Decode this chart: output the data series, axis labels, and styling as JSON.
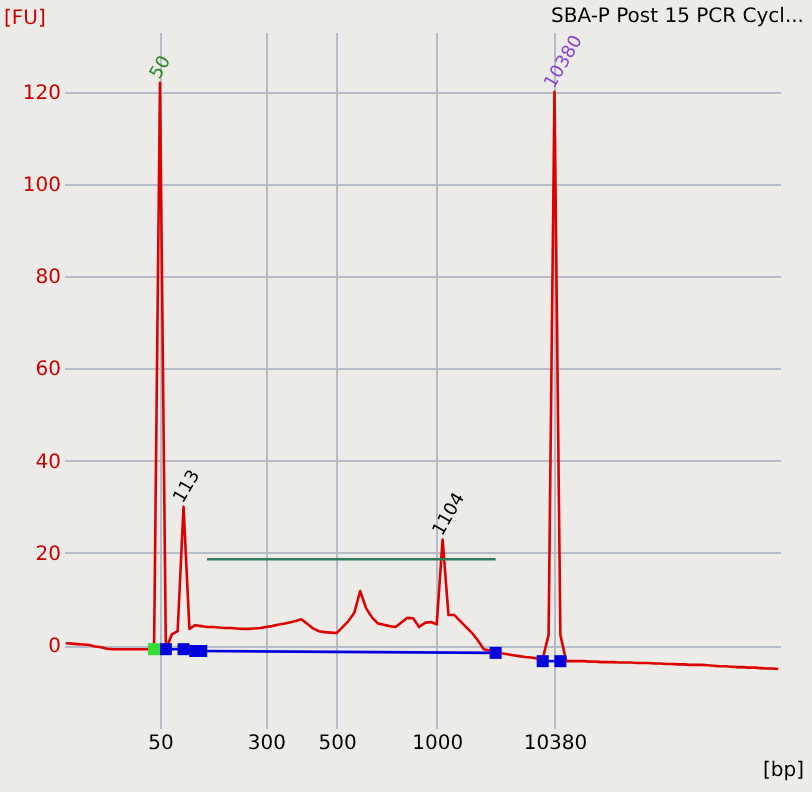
{
  "chart_data": {
    "type": "line",
    "title": "SBA-P Post 15 PCR Cycl...",
    "xlabel": "[bp]",
    "ylabel": "[FU]",
    "categories": [
      null,
      null,
      null,
      null,
      null,
      null,
      null,
      null,
      null,
      null,
      null,
      null,
      null,
      null,
      null,
      null,
      "50",
      null,
      null,
      null,
      null,
      null,
      null,
      null,
      null,
      null,
      null,
      null,
      null,
      null,
      null,
      null,
      null,
      null,
      "300",
      null,
      null,
      null,
      null,
      null,
      null,
      null,
      null,
      null,
      null,
      null,
      "500",
      null,
      null,
      null,
      null,
      null,
      null,
      null,
      null,
      null,
      null,
      null,
      null,
      null,
      null,
      null,
      null,
      "1000",
      null,
      null,
      null,
      null,
      null,
      null,
      null,
      null,
      null,
      null,
      null,
      null,
      null,
      null,
      null,
      null,
      null,
      null,
      null,
      "10380",
      null,
      null,
      null,
      null,
      null,
      null,
      null,
      null,
      null,
      null,
      null,
      null,
      null,
      null,
      null,
      null,
      null,
      null,
      null,
      null,
      null,
      null,
      null,
      null,
      null,
      null,
      null,
      null,
      null,
      null,
      null,
      null,
      null,
      null,
      null,
      null,
      null,
      null
    ],
    "ylim": [
      -18,
      133
    ],
    "yticks": [
      0,
      20,
      40,
      60,
      80,
      100,
      120
    ],
    "grid": true,
    "annotations": [
      {
        "text": "50",
        "x": "50",
        "y": 122
      },
      {
        "text": "113",
        "y": 30
      },
      {
        "text": "1104",
        "y": 22.9
      },
      {
        "text": "10380",
        "x": "10380",
        "y": 120
      }
    ],
    "series": [
      {
        "color": "#dd0000",
        "values": [
          0.4,
          0.3,
          0.2,
          0.1,
          0,
          -0.3,
          -0.5,
          -0.8,
          -0.9,
          -0.9,
          -0.9,
          -0.9,
          -0.9,
          -0.9,
          -0.9,
          -0.5,
          122,
          -1,
          2.3,
          3,
          30,
          3.5,
          4.3,
          4.1,
          3.9,
          3.9,
          3.8,
          3.7,
          3.7,
          3.6,
          3.5,
          3.5,
          3.6,
          3.7,
          3.9,
          4.1,
          4.4,
          4.6,
          4.9,
          5.2,
          5.6,
          4.6,
          3.6,
          3,
          2.8,
          2.7,
          2.6,
          3.9,
          5.2,
          7,
          11.7,
          8,
          6,
          4.7,
          4.4,
          4.1,
          3.9,
          4.9,
          5.9,
          5.8,
          3.9,
          4.8,
          5,
          4.5,
          22.9,
          6.5,
          6.5,
          5.2,
          3.9,
          2.6,
          1,
          -0.9,
          -1.2,
          -1.5,
          -1.8,
          -2,
          -2.2,
          -2.4,
          -2.6,
          -2.7,
          -2.9,
          -3,
          2.2,
          120,
          2.2,
          -3.5,
          -3.5,
          -3.5,
          -3.5,
          -3.6,
          -3.6,
          -3.7,
          -3.7,
          -3.7,
          -3.8,
          -3.8,
          -3.8,
          -3.9,
          -3.9,
          -3.9,
          -4,
          -4,
          -4.1,
          -4.1,
          -4.2,
          -4.2,
          -4.3,
          -4.3,
          -4.3,
          -4.4,
          -4.5,
          -4.6,
          -4.6,
          -4.7,
          -4.8,
          -4.8,
          -4.9,
          -4.9,
          -5,
          -5.1,
          -5.1,
          -5.2
        ]
      },
      {
        "type": "line",
        "color": "#2e7d5b",
        "values": [
          null,
          null,
          null,
          null,
          null,
          null,
          null,
          null,
          null,
          null,
          null,
          null,
          null,
          null,
          null,
          null,
          null,
          null,
          null,
          null,
          null,
          null,
          null,
          null,
          18.6,
          18.6,
          18.6,
          18.6,
          18.6,
          18.6,
          18.6,
          18.6,
          18.6,
          18.6,
          18.6,
          18.6,
          18.6,
          18.6,
          18.6,
          18.6,
          18.6,
          18.6,
          18.6,
          18.6,
          18.6,
          18.6,
          18.6,
          18.6,
          18.6,
          18.6,
          18.6,
          18.6,
          18.6,
          18.6,
          18.6,
          18.6,
          18.6,
          18.6,
          18.6,
          18.6,
          18.6,
          18.6,
          18.6,
          18.6,
          18.6,
          18.6,
          18.6,
          18.6,
          18.6,
          18.6,
          18.6,
          18.6,
          18.6,
          18.6,
          null,
          null,
          null,
          null,
          null,
          null,
          null,
          null,
          null,
          null,
          null,
          null,
          null,
          null,
          null,
          null,
          null,
          null,
          null,
          null,
          null,
          null,
          null,
          null,
          null,
          null,
          null,
          null,
          null,
          null,
          null,
          null,
          null,
          null,
          null,
          null,
          null,
          null,
          null,
          null,
          null,
          null,
          null,
          null,
          null,
          null,
          null,
          null
        ]
      },
      {
        "type": "line",
        "color": "#0000dd",
        "marker": "square",
        "values": [
          null,
          null,
          null,
          null,
          null,
          null,
          null,
          null,
          null,
          null,
          null,
          null,
          null,
          null,
          null,
          null,
          null,
          -0.9,
          null,
          null,
          -0.9,
          null,
          -1.3,
          -1.3,
          null,
          null,
          null,
          null,
          null,
          null,
          null,
          null,
          null,
          null,
          null,
          null,
          null,
          null,
          null,
          null,
          null,
          null,
          null,
          null,
          null,
          null,
          null,
          null,
          null,
          null,
          null,
          null,
          null,
          null,
          null,
          null,
          null,
          null,
          null,
          null,
          null,
          null,
          null,
          null,
          null,
          null,
          null,
          null,
          null,
          null,
          null,
          null,
          null,
          -1.7,
          null,
          null,
          null,
          null,
          null,
          null,
          null,
          null,
          null,
          null,
          null,
          null,
          null,
          null,
          null,
          null,
          null,
          null,
          null,
          null,
          null,
          null,
          null,
          null,
          null,
          null,
          null,
          null,
          null,
          null,
          null,
          null,
          null,
          null,
          null,
          null,
          null,
          null,
          null,
          null,
          null,
          null,
          null,
          null,
          null,
          null,
          null,
          null
        ]
      },
      {
        "type": "line",
        "color": "#0000dd",
        "marker": "square",
        "values": [
          null,
          null,
          null,
          null,
          null,
          null,
          null,
          null,
          null,
          null,
          null,
          null,
          null,
          null,
          null,
          null,
          null,
          null,
          null,
          null,
          null,
          null,
          null,
          null,
          null,
          null,
          null,
          null,
          null,
          null,
          null,
          null,
          null,
          null,
          null,
          null,
          null,
          null,
          null,
          null,
          null,
          null,
          null,
          null,
          null,
          null,
          null,
          null,
          null,
          null,
          null,
          null,
          null,
          null,
          null,
          null,
          null,
          null,
          null,
          null,
          null,
          null,
          null,
          null,
          null,
          null,
          null,
          null,
          null,
          null,
          null,
          null,
          null,
          null,
          null,
          null,
          null,
          null,
          null,
          null,
          null,
          -3.5,
          null,
          null,
          -3.5,
          null,
          null,
          null,
          null,
          null,
          null,
          null,
          null,
          null,
          null,
          null,
          null,
          null,
          null,
          null,
          null,
          null,
          null,
          null,
          null,
          null,
          null,
          null,
          null,
          null,
          null,
          null,
          null,
          null,
          null,
          null,
          null,
          null,
          null,
          null,
          null,
          null
        ]
      },
      {
        "type": "scatter",
        "color": "#33dd33",
        "marker": "square",
        "values": [
          null,
          null,
          null,
          null,
          null,
          null,
          null,
          null,
          null,
          null,
          null,
          null,
          null,
          null,
          null,
          -0.9,
          null,
          null,
          null,
          null,
          null,
          null,
          null,
          null,
          null,
          null,
          null,
          null,
          null,
          null,
          null,
          null,
          null,
          null,
          null,
          null,
          null,
          null,
          null,
          null,
          null,
          null,
          null,
          null,
          null,
          null,
          null,
          null,
          null,
          null,
          null,
          null,
          null,
          null,
          null,
          null,
          null,
          null,
          null,
          null,
          null,
          null,
          null,
          null,
          null,
          null,
          null,
          null,
          null,
          null,
          null,
          null,
          null,
          null,
          null,
          null,
          null,
          null,
          null,
          null,
          null,
          null,
          null,
          null,
          null,
          null,
          null,
          null,
          null,
          null,
          null,
          null,
          null,
          null,
          null,
          null,
          null,
          null,
          null,
          null,
          null,
          null,
          null,
          null,
          null,
          null,
          null,
          null,
          null,
          null,
          null,
          null,
          null,
          null,
          null,
          null,
          null,
          null,
          null,
          null,
          null,
          null
        ]
      }
    ]
  }
}
